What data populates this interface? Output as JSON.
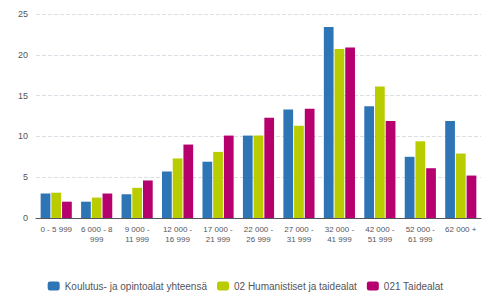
{
  "chart_data": {
    "type": "bar",
    "categories": [
      "0 - 5 999",
      "6 000 - 8\n999",
      "9 000 -\n11 999",
      "12 000 -\n16 999",
      "17 000 -\n21 999",
      "22 000 -\n26 999",
      "27 000 -\n31 999",
      "32 000 -\n41 999",
      "42 000 -\n51 999",
      "52 000 -\n61 999",
      "62 000 +"
    ],
    "series": [
      {
        "name": "Koulutus- ja opintoalat yhteensä",
        "color": "#2e75b6",
        "values": [
          3.0,
          2.0,
          2.9,
          5.7,
          6.9,
          10.1,
          13.3,
          23.4,
          13.7,
          7.5,
          11.9
        ]
      },
      {
        "name": "02 Humanistiset ja taidealat",
        "color": "#b8cc00",
        "values": [
          3.1,
          2.5,
          3.7,
          7.3,
          8.1,
          10.1,
          11.3,
          20.7,
          16.1,
          9.4,
          7.9
        ]
      },
      {
        "name": "021 Taidealat",
        "color": "#b5006e",
        "values": [
          2.0,
          3.0,
          4.6,
          9.0,
          10.1,
          12.3,
          13.4,
          20.9,
          11.9,
          6.1,
          5.2
        ]
      }
    ],
    "ylim": [
      0,
      25
    ],
    "yticks": [
      0,
      5,
      10,
      15,
      20,
      25
    ],
    "grid": true,
    "legend": "bottom"
  }
}
